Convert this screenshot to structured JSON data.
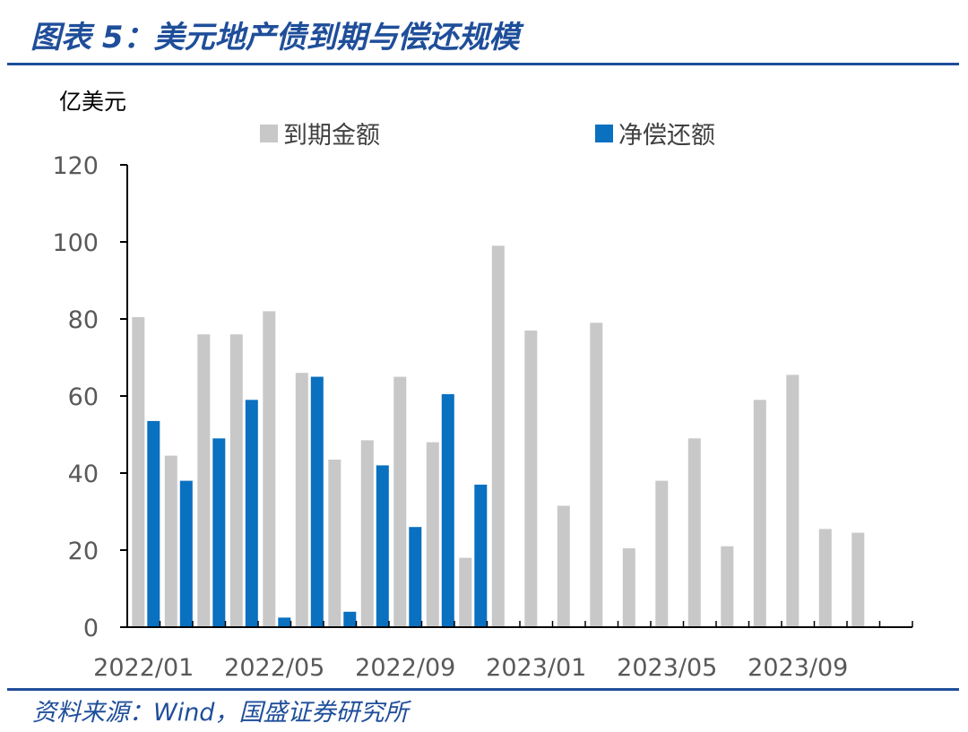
{
  "header": {
    "title": "图表 5：美元地产债到期与偿还规模"
  },
  "footer": {
    "source": "资料来源：Wind，国盛证券研究所"
  },
  "colors": {
    "maturity": "#c8c8c8",
    "net_repayment": "#0a70c0",
    "axis": "#000000",
    "title": "#1f4e9a"
  },
  "chart_data": {
    "type": "bar",
    "ylabel": "亿美元",
    "ylim": [
      0,
      120
    ],
    "yticks": [
      0,
      20,
      40,
      60,
      80,
      100,
      120
    ],
    "legend_position": "top",
    "grid": false,
    "categories": [
      "2022/01",
      "2022/02",
      "2022/03",
      "2022/04",
      "2022/05",
      "2022/06",
      "2022/07",
      "2022/08",
      "2022/09",
      "2022/10",
      "2022/11",
      "2022/12",
      "2023/01",
      "2023/02",
      "2023/03",
      "2023/04",
      "2023/05",
      "2023/06",
      "2023/07",
      "2023/08",
      "2023/09",
      "2023/10",
      "2023/11",
      "2023/12"
    ],
    "xtick_labels": [
      "2022/01",
      "2022/05",
      "2022/09",
      "2023/01",
      "2023/05",
      "2023/09"
    ],
    "xtick_indices": [
      0,
      4,
      8,
      12,
      16,
      20
    ],
    "series": [
      {
        "name": "到期金额",
        "values": [
          80.5,
          44.5,
          76,
          76,
          82,
          66,
          43.5,
          48.5,
          65,
          48,
          18,
          99,
          77,
          31.5,
          79,
          20.5,
          38,
          49,
          21,
          59,
          65.5,
          25.5,
          24.5,
          null
        ]
      },
      {
        "name": "净偿还额",
        "values": [
          53.5,
          38,
          49,
          59,
          2.5,
          65,
          4,
          42,
          26,
          60.5,
          37,
          null,
          null,
          null,
          null,
          null,
          null,
          null,
          null,
          null,
          null,
          null,
          null,
          null
        ]
      }
    ]
  }
}
